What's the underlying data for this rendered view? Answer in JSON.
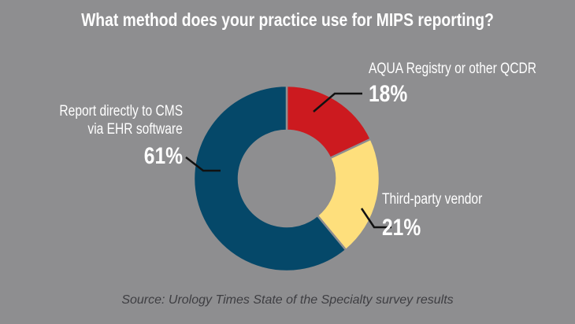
{
  "chart_data": {
    "type": "pie",
    "variant": "donut",
    "title": "What method does your practice use for MIPS reporting?",
    "slices": [
      {
        "label": "AQUA Registry or other QCDR",
        "value": 18,
        "value_label": "18%",
        "color": "#cc1a1f"
      },
      {
        "label": "Third-party vendor",
        "value": 21,
        "value_label": "21%",
        "color": "#fedf7c"
      },
      {
        "label_lines": [
          "Report directly to CMS",
          "via EHR software"
        ],
        "value": 61,
        "value_label": "61%",
        "color": "#054869"
      }
    ],
    "source": "Source: Urology Times State of the Specialty survey results"
  },
  "colors": {
    "background": "#8e8e90",
    "leader": "#111111"
  }
}
